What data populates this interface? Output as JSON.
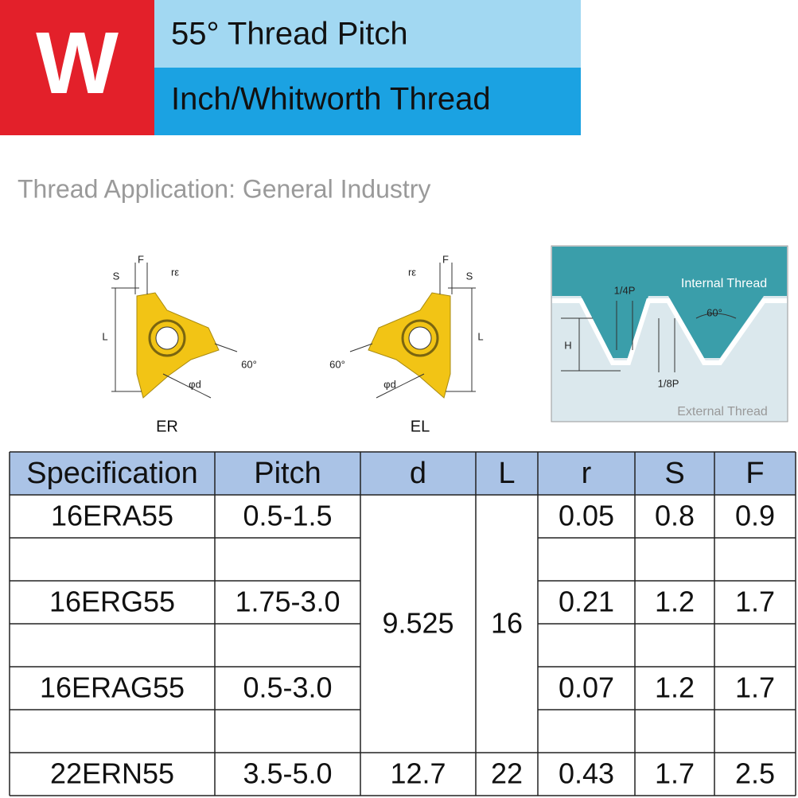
{
  "header": {
    "badge": "W",
    "line1": "55° Thread Pitch",
    "line2": "Inch/Whitworth Thread"
  },
  "application": "Thread Application: General Industry",
  "diagrams": {
    "er": {
      "name": "ER",
      "f": "F",
      "s": "S",
      "r": "rε",
      "l": "L",
      "angle": "60°",
      "d": "φd"
    },
    "el": {
      "name": "EL",
      "f": "F",
      "s": "S",
      "r": "rε",
      "l": "L",
      "angle": "60°",
      "d": "φd"
    },
    "thread": {
      "internal": "Internal Thread",
      "quarter": "1/4P",
      "angle": "60°",
      "h": "H",
      "eighth": "1/8P",
      "external": "External Thread"
    }
  },
  "table": {
    "columns": [
      "Specification",
      "Pitch",
      "d",
      "L",
      "r",
      "S",
      "F"
    ],
    "rows": [
      {
        "spec": "16ERA55",
        "pitch": "0.5-1.5",
        "r": "0.05",
        "s": "0.8",
        "f": "0.9"
      },
      {
        "spec": "16ERG55",
        "pitch": "1.75-3.0",
        "r": "0.21",
        "s": "1.2",
        "f": "1.7"
      },
      {
        "spec": "16ERAG55",
        "pitch": "0.5-3.0",
        "r": "0.07",
        "s": "1.2",
        "f": "1.7"
      },
      {
        "spec": "22ERN55",
        "pitch": "3.5-5.0",
        "r": "0.43",
        "s": "1.7",
        "f": "2.5"
      }
    ],
    "shared": [
      {
        "d": "9.525",
        "l": "16"
      },
      {
        "d": "12.7",
        "l": "22"
      }
    ]
  }
}
